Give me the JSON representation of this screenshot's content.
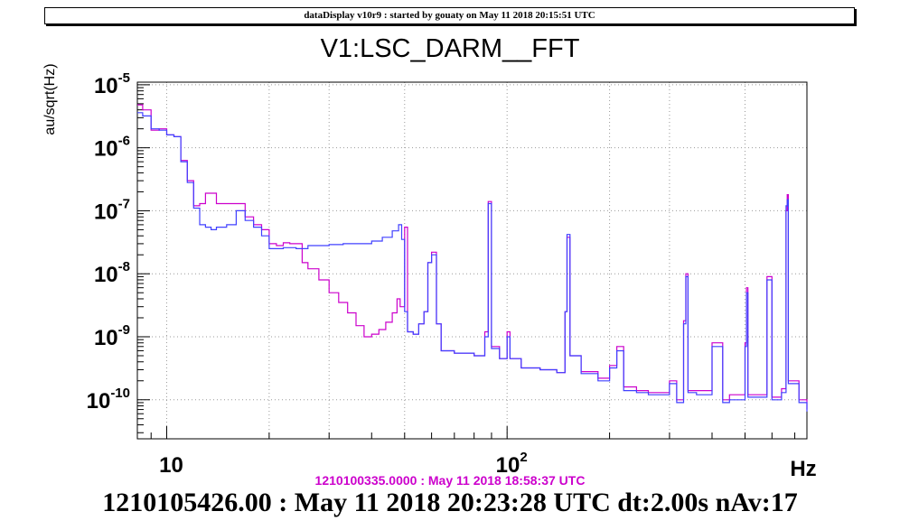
{
  "header": {
    "title": "dataDisplay v10r9 : started by gouaty on May 11 2018 20:15:51 UTC"
  },
  "colors": {
    "reference": "#cc00cc",
    "current": "#4040ff",
    "axis": "#000000",
    "grid": "#9a9a9a"
  },
  "chart_data": {
    "type": "line",
    "title": "V1:LSC_DARM__FFT",
    "ylabel": "au/sqrt(Hz)",
    "xlabel": "Hz",
    "xscale": "log",
    "yscale": "log",
    "xlim": [
      8.2,
      760
    ],
    "ylim": [
      2.4e-11,
      1.1e-05
    ],
    "grid": true,
    "x_ticks": [
      {
        "value": 10,
        "base": "10",
        "exp": ""
      },
      {
        "value": 100,
        "base": "10",
        "exp": "2"
      }
    ],
    "y_ticks": [
      {
        "value": 1e-05,
        "base": "10",
        "exp": "-5"
      },
      {
        "value": 1e-06,
        "base": "10",
        "exp": "-6"
      },
      {
        "value": 1e-07,
        "base": "10",
        "exp": "-7"
      },
      {
        "value": 1e-08,
        "base": "10",
        "exp": "-8"
      },
      {
        "value": 1e-09,
        "base": "10",
        "exp": "-9"
      },
      {
        "value": 1e-10,
        "base": "10",
        "exp": "-10"
      }
    ],
    "series": [
      {
        "name": "1210100335.0000 : May 11 2018 18:58:37 UTC",
        "color": "#cc00cc",
        "points": [
          [
            8.2,
            4.8e-06
          ],
          [
            8.5,
            4e-06
          ],
          [
            9.0,
            1.9e-06
          ],
          [
            9.5,
            2e-06
          ],
          [
            10.0,
            1.6e-06
          ],
          [
            10.5,
            1.5e-06
          ],
          [
            11.0,
            6.3e-07
          ],
          [
            11.5,
            3e-07
          ],
          [
            12.0,
            1.2e-07
          ],
          [
            12.5,
            1.3e-07
          ],
          [
            13.0,
            1.9e-07
          ],
          [
            13.5,
            1.9e-07
          ],
          [
            14.0,
            1.3e-07
          ],
          [
            15.0,
            1.3e-07
          ],
          [
            16.0,
            1.3e-07
          ],
          [
            17.0,
            8e-08
          ],
          [
            18.0,
            6e-08
          ],
          [
            19.0,
            5e-08
          ],
          [
            20.0,
            3e-08
          ],
          [
            21.0,
            2.8e-08
          ],
          [
            22.0,
            3.1e-08
          ],
          [
            23.0,
            3e-08
          ],
          [
            24.0,
            3e-08
          ],
          [
            25.0,
            1.5e-08
          ],
          [
            26.0,
            1.2e-08
          ],
          [
            28.0,
            8e-09
          ],
          [
            30.0,
            5e-09
          ],
          [
            32.0,
            3.5e-09
          ],
          [
            34.0,
            2.4e-09
          ],
          [
            36.0,
            1.5e-09
          ],
          [
            38.0,
            1e-09
          ],
          [
            40.0,
            1.1e-09
          ],
          [
            42.0,
            1.3e-09
          ],
          [
            44.0,
            1.7e-09
          ],
          [
            46.0,
            2.4e-09
          ],
          [
            47.5,
            4e-09
          ],
          [
            48.5,
            3e-09
          ],
          [
            50.0,
            5.5e-08
          ],
          [
            51.0,
            1.2e-09
          ],
          [
            53.0,
            1.1e-09
          ],
          [
            55.0,
            1.6e-09
          ],
          [
            57.0,
            2.5e-09
          ],
          [
            58.5,
            1.5e-08
          ],
          [
            60.0,
            2.2e-08
          ],
          [
            62.0,
            1.6e-09
          ],
          [
            64.0,
            6e-10
          ],
          [
            70.0,
            5.5e-10
          ],
          [
            80.0,
            5e-10
          ],
          [
            86.0,
            1.2e-09
          ],
          [
            88.0,
            1.4e-07
          ],
          [
            90.0,
            7e-10
          ],
          [
            95.0,
            4.5e-10
          ],
          [
            100.0,
            1.2e-09
          ],
          [
            102.0,
            4.5e-10
          ],
          [
            110.0,
            3.2e-10
          ],
          [
            125.0,
            3e-10
          ],
          [
            140.0,
            2.7e-10
          ],
          [
            148.0,
            2.5e-09
          ],
          [
            150.0,
            3.8e-08
          ],
          [
            153.0,
            5e-10
          ],
          [
            165.0,
            2.8e-10
          ],
          [
            185.0,
            2.2e-10
          ],
          [
            200.0,
            3.5e-10
          ],
          [
            210.0,
            7e-10
          ],
          [
            220.0,
            1.6e-10
          ],
          [
            240.0,
            1.4e-10
          ],
          [
            260.0,
            1.3e-10
          ],
          [
            300.0,
            2e-10
          ],
          [
            315.0,
            1e-10
          ],
          [
            330.0,
            1.8e-09
          ],
          [
            335.0,
            1e-08
          ],
          [
            340.0,
            1.4e-10
          ],
          [
            360.0,
            1.4e-10
          ],
          [
            400.0,
            8e-10
          ],
          [
            430.0,
            1e-10
          ],
          [
            450.0,
            1.2e-10
          ],
          [
            500.0,
            8e-10
          ],
          [
            505.0,
            6e-09
          ],
          [
            510.0,
            1.2e-10
          ],
          [
            560.0,
            1.2e-10
          ],
          [
            580.0,
            9e-09
          ],
          [
            600.0,
            1.1e-10
          ],
          [
            640.0,
            1.5e-10
          ],
          [
            660.0,
            1e-07
          ],
          [
            665.0,
            1.8e-07
          ],
          [
            670.0,
            2e-10
          ],
          [
            720.0,
            1e-10
          ],
          [
            760.0,
            7e-11
          ]
        ]
      },
      {
        "name": "1210105426.00 : May 11 2018 20:23:28 UTC dt:2.00s nAv:17",
        "color": "#4040ff",
        "points": [
          [
            8.2,
            3.6e-06
          ],
          [
            8.5,
            3.2e-06
          ],
          [
            9.0,
            2e-06
          ],
          [
            9.5,
            1.9e-06
          ],
          [
            10.0,
            1.6e-06
          ],
          [
            10.5,
            1.5e-06
          ],
          [
            11.0,
            6e-07
          ],
          [
            11.5,
            2.8e-07
          ],
          [
            12.0,
            1.1e-07
          ],
          [
            12.5,
            6e-08
          ],
          [
            13.0,
            5.5e-08
          ],
          [
            13.5,
            5e-08
          ],
          [
            14.0,
            5.5e-08
          ],
          [
            15.0,
            6e-08
          ],
          [
            16.0,
            1e-07
          ],
          [
            17.0,
            7e-08
          ],
          [
            18.0,
            5.5e-08
          ],
          [
            19.0,
            4e-08
          ],
          [
            20.0,
            2.5e-08
          ],
          [
            22.0,
            2.6e-08
          ],
          [
            24.0,
            2.5e-08
          ],
          [
            26.0,
            2.8e-08
          ],
          [
            28.0,
            2.8e-08
          ],
          [
            30.0,
            2.9e-08
          ],
          [
            33.0,
            3e-08
          ],
          [
            36.0,
            3e-08
          ],
          [
            40.0,
            3.3e-08
          ],
          [
            43.0,
            3.8e-08
          ],
          [
            46.0,
            4.8e-08
          ],
          [
            48.0,
            6e-08
          ],
          [
            49.0,
            3.5e-08
          ],
          [
            50.0,
            2.5e-09
          ],
          [
            51.0,
            1.2e-09
          ],
          [
            53.0,
            1.1e-09
          ],
          [
            55.0,
            1.6e-09
          ],
          [
            57.0,
            2.5e-09
          ],
          [
            58.5,
            1.5e-08
          ],
          [
            60.0,
            2e-08
          ],
          [
            62.0,
            1.6e-09
          ],
          [
            64.0,
            6e-10
          ],
          [
            70.0,
            5.5e-10
          ],
          [
            80.0,
            5e-10
          ],
          [
            86.0,
            1e-09
          ],
          [
            88.0,
            1.3e-07
          ],
          [
            90.0,
            6.5e-10
          ],
          [
            95.0,
            4.5e-10
          ],
          [
            100.0,
            1e-09
          ],
          [
            102.0,
            4.5e-10
          ],
          [
            110.0,
            3.2e-10
          ],
          [
            125.0,
            3e-10
          ],
          [
            140.0,
            2.7e-10
          ],
          [
            148.0,
            2.5e-09
          ],
          [
            150.0,
            4.2e-08
          ],
          [
            153.0,
            5e-10
          ],
          [
            165.0,
            2.6e-10
          ],
          [
            185.0,
            2e-10
          ],
          [
            200.0,
            3.2e-10
          ],
          [
            210.0,
            6e-10
          ],
          [
            220.0,
            1.4e-10
          ],
          [
            240.0,
            1.3e-10
          ],
          [
            260.0,
            1.2e-10
          ],
          [
            300.0,
            1.8e-10
          ],
          [
            315.0,
            9e-11
          ],
          [
            330.0,
            1.6e-09
          ],
          [
            335.0,
            9e-09
          ],
          [
            340.0,
            1.3e-10
          ],
          [
            360.0,
            1.2e-10
          ],
          [
            400.0,
            7e-10
          ],
          [
            430.0,
            9e-11
          ],
          [
            450.0,
            1e-10
          ],
          [
            500.0,
            7e-10
          ],
          [
            505.0,
            5e-09
          ],
          [
            510.0,
            1.1e-10
          ],
          [
            560.0,
            1.1e-10
          ],
          [
            580.0,
            8e-09
          ],
          [
            600.0,
            1e-10
          ],
          [
            640.0,
            1.3e-10
          ],
          [
            660.0,
            1.2e-07
          ],
          [
            665.0,
            1.5e-07
          ],
          [
            670.0,
            1.8e-10
          ],
          [
            720.0,
            9e-11
          ],
          [
            760.0,
            6.5e-11
          ]
        ]
      }
    ]
  },
  "reference_label": "1210100335.0000 : May 11 2018 18:58:37 UTC",
  "footer": "1210105426.00 : May 11 2018 20:23:28 UTC dt:2.00s nAv:17"
}
